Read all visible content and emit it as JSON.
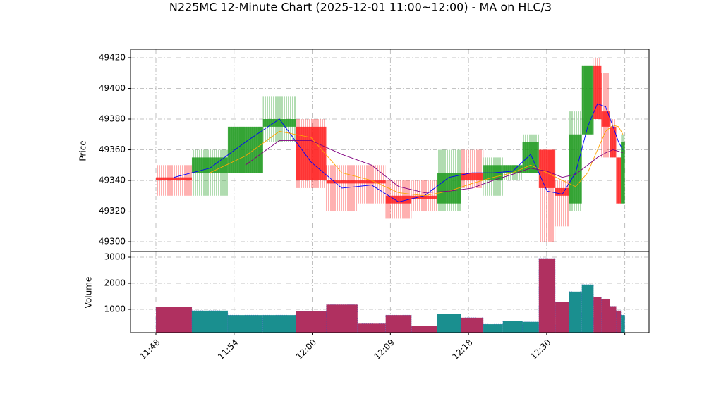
{
  "chart_data": {
    "type": "candlestick",
    "title": "N225MC 12-Minute Chart (2025-12-01 11:00~12:00) - MA on HLC/3",
    "ylabel": "Price",
    "xlim": [
      -3.25,
      63.1
    ],
    "xticks": [
      {
        "value": 0,
        "label": "11:48"
      },
      {
        "value": 10,
        "label": "11:54"
      },
      {
        "value": 20,
        "label": "12:00"
      },
      {
        "value": 30,
        "label": "12:09"
      },
      {
        "value": 40,
        "label": "12:18"
      },
      {
        "value": 50,
        "label": "12:30"
      },
      {
        "value": 60,
        "label": null
      }
    ],
    "ylim": [
      49293.6,
      49425.5
    ],
    "yticks": [
      49300,
      49320,
      49340,
      49360,
      49380,
      49400,
      49420
    ],
    "grid": true,
    "up_color": "#1f9a1f",
    "down_color": "#ff1f1f",
    "x0": [
      0,
      4.6,
      9.2,
      13.7,
      17.9,
      21.8,
      25.8,
      29.4,
      32.7,
      36,
      39,
      41.9,
      44.4,
      46.9,
      49,
      51.1,
      52.9,
      54.5,
      56,
      57,
      58.1,
      58.9,
      59.5
    ],
    "x1": [
      4.6,
      9.2,
      13.7,
      17.9,
      21.8,
      25.8,
      29.4,
      32.7,
      36,
      39,
      41.9,
      44.4,
      46.9,
      49,
      51.1,
      52.9,
      54.5,
      56,
      57,
      58.1,
      58.9,
      59.5,
      60
    ],
    "open": [
      49342,
      49345,
      49345,
      49375,
      49375,
      49340,
      49340,
      49330,
      49330,
      49325,
      49345,
      49340,
      49345,
      49345,
      49360,
      49335,
      49325,
      49370,
      49415,
      49385,
      49375,
      49355,
      49325
    ],
    "high": [
      49350,
      49360,
      49375,
      49395,
      49380,
      49350,
      49350,
      49340,
      49340,
      49360,
      49360,
      49355,
      49350,
      49370,
      49360,
      49340,
      49385,
      49415,
      49420,
      49410,
      49380,
      49355,
      49370
    ],
    "low": [
      49330,
      49330,
      49345,
      49365,
      49335,
      49320,
      49325,
      49315,
      49320,
      49320,
      49335,
      49330,
      49340,
      49345,
      49300,
      49310,
      49320,
      49370,
      49380,
      49355,
      49355,
      49325,
      49325
    ],
    "close": [
      49340,
      49355,
      49375,
      49380,
      49340,
      49338,
      49338,
      49325,
      49328,
      49345,
      49340,
      49350,
      49350,
      49365,
      49335,
      49330,
      49370,
      49415,
      49380,
      49375,
      49355,
      49325,
      49365
    ],
    "series": [
      {
        "color": "#0000ff",
        "values": [
          49342,
          49348,
          49365,
          49380,
          49352,
          49335,
          49337,
          49326,
          49330,
          49342,
          49345,
          49345,
          49346,
          49357,
          49333,
          49331,
          49345,
          49375,
          49390,
          49388,
          49375,
          49365,
          49360
        ]
      },
      {
        "color": "#ffa500",
        "values": [
          null,
          49345,
          49356,
          49372,
          49368,
          49345,
          49340,
          49332,
          49330,
          49333,
          49338,
          49342,
          49345,
          49350,
          49345,
          49340,
          49336,
          49345,
          49360,
          49372,
          49376,
          49375,
          49370
        ]
      },
      {
        "color": "#800080",
        "values": [
          null,
          null,
          49350,
          49366,
          49366,
          49357,
          49350,
          49336,
          49332,
          49333,
          49335,
          49340,
          49344,
          49348,
          49346,
          49342,
          49344,
          49350,
          49355,
          49358,
          49360,
          49359,
          49358
        ]
      }
    ],
    "volume": {
      "ylabel": "Volume",
      "ylim": [
        108,
        3216
      ],
      "yticks": [
        1000,
        2000,
        3000
      ],
      "up_color": "#1a8f8f",
      "down_color": "#b03060",
      "values": [
        1100,
        950,
        780,
        780,
        920,
        1180,
        450,
        780,
        370,
        830,
        680,
        430,
        560,
        520,
        2950,
        1270,
        1680,
        1950,
        1480,
        1400,
        1120,
        950,
        780
      ]
    }
  }
}
